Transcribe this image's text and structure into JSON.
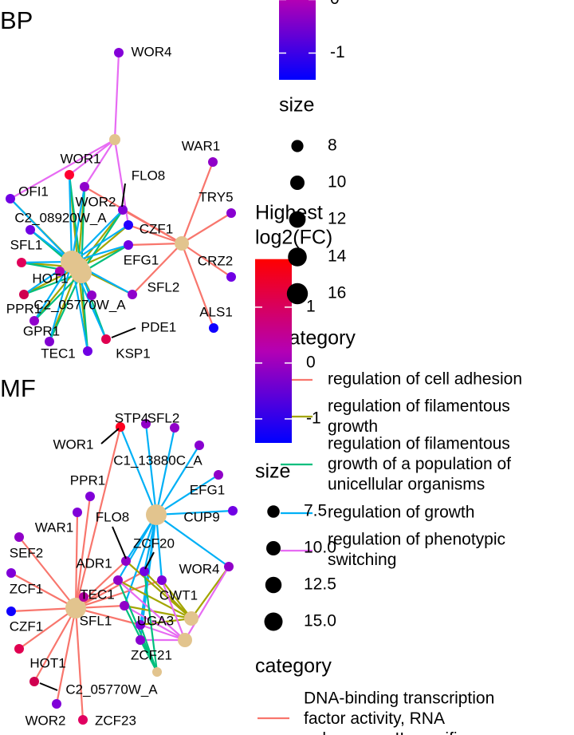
{
  "panels": [
    {
      "title": "BP",
      "genes": [
        {
          "label": "WOR4",
          "color": "#8400d8"
        },
        {
          "label": "WOR1",
          "color": "#ff0030"
        },
        {
          "label": "OFI1",
          "color": "#7000e4"
        },
        {
          "label": "WOR2",
          "color": "#9000cc"
        },
        {
          "label": "FLO8",
          "color": "#8000d8"
        },
        {
          "label": "C2_08920W_A",
          "color": "#7000e4"
        },
        {
          "label": "CZF1",
          "color": "#2000ff"
        },
        {
          "label": "EFG1",
          "color": "#7000e4"
        },
        {
          "label": "SFL1",
          "color": "#e0005a"
        },
        {
          "label": "HOT1",
          "color": "#b000b0"
        },
        {
          "label": "SFL2",
          "color": "#9000cc"
        },
        {
          "label": "C2_05770W_A",
          "color": "#9000c8"
        },
        {
          "label": "PPR1",
          "color": "#d00050"
        },
        {
          "label": "GPR1",
          "color": "#9000cc"
        },
        {
          "label": "TEC1",
          "color": "#8000d0"
        },
        {
          "label": "PDE1",
          "color": "#e00050"
        },
        {
          "label": "KSP1",
          "color": "#7000e4"
        },
        {
          "label": "WAR1",
          "color": "#9000c8"
        },
        {
          "label": "TRY5",
          "color": "#8800d0"
        },
        {
          "label": "CRZ2",
          "color": "#7000e4"
        },
        {
          "label": "ALS1",
          "color": "#1000ff"
        }
      ],
      "categories": [
        {
          "name": [
            "regulation of cell adhesion"
          ],
          "color": "#f8766d",
          "genes": [
            17,
            18,
            19,
            20,
            10,
            6,
            4,
            7,
            3
          ]
        },
        {
          "name": [
            "regulation of filamentous",
            "growth"
          ],
          "color": "#a3a500",
          "genes": [
            1,
            2,
            3,
            5,
            8,
            11,
            12,
            13,
            14,
            16,
            4,
            6,
            7,
            10
          ]
        },
        {
          "name": [
            "regulation of filamentous",
            "growth of a population of",
            "unicellular organisms"
          ],
          "color": "#00bf7d",
          "genes": [
            1,
            3,
            5,
            8,
            12,
            13,
            14,
            15,
            16,
            4,
            7
          ]
        },
        {
          "name": [
            "regulation of growth"
          ],
          "color": "#00b0f6",
          "genes": [
            1,
            2,
            3,
            5,
            8,
            9,
            11,
            12,
            13,
            14,
            15,
            16,
            4,
            6,
            7,
            10
          ]
        },
        {
          "name": [
            "regulation of phenotypic",
            "switching"
          ],
          "color": "#e76bf3",
          "genes": [
            0,
            1,
            3,
            6,
            2
          ]
        }
      ],
      "legend": {
        "color_lim": [
          -1.5,
          1.5
        ],
        "color_ticks": [
          0,
          -1
        ],
        "size_title": "size",
        "size_ticks": [
          8,
          10,
          12,
          14,
          16
        ],
        "category_title": "category"
      }
    },
    {
      "title": "MF",
      "genes": [
        {
          "label": "WOR1",
          "color": "#ff0020"
        },
        {
          "label": "STP4",
          "color": "#9000c8"
        },
        {
          "label": "SFL2",
          "color": "#9000c8"
        },
        {
          "label": "C1_13880C_A",
          "color": "#8800d0"
        },
        {
          "label": "PPR1",
          "color": "#8000d8"
        },
        {
          "label": "EFG1",
          "color": "#9000c8"
        },
        {
          "label": "CUP9",
          "color": "#7000e4"
        },
        {
          "label": "WAR1",
          "color": "#8000d8"
        },
        {
          "label": "FLO8",
          "color": "#9000c8"
        },
        {
          "label": "SEF2",
          "color": "#9000c8"
        },
        {
          "label": "ZCF20",
          "color": "#7000e4"
        },
        {
          "label": "ADR1",
          "color": "#9000c8"
        },
        {
          "label": "WOR4",
          "color": "#9000c8"
        },
        {
          "label": "ZCF1",
          "color": "#8000d8"
        },
        {
          "label": "TEC1",
          "color": "#b000a0"
        },
        {
          "label": "CWT1",
          "color": "#8000d8"
        },
        {
          "label": "CZF1",
          "color": "#1000ff"
        },
        {
          "label": "SFL1",
          "color": "#9000c8"
        },
        {
          "label": "UGA3",
          "color": "#8000d8"
        },
        {
          "label": "ZCF21",
          "color": "#8800d0"
        },
        {
          "label": "HOT1",
          "color": "#e00050"
        },
        {
          "label": "C2_05770W_A",
          "color": "#d00050"
        },
        {
          "label": "WOR2",
          "color": "#8000d8"
        },
        {
          "label": "ZCF23",
          "color": "#e00060"
        }
      ],
      "categories": [
        {
          "name": [
            "DNA-binding transcription",
            "factor activity, RNA",
            "polymerase II-specific"
          ],
          "color": "#f8766d",
          "genes": [
            0,
            4,
            7,
            9,
            13,
            16,
            20,
            21,
            22,
            23,
            8,
            11,
            10,
            17,
            18,
            15,
            14
          ]
        },
        {
          "color": "#00b0f6",
          "genes": [
            0,
            1,
            2,
            3,
            5,
            6,
            8,
            10,
            11,
            15,
            17,
            18,
            19,
            12
          ]
        },
        {
          "color": "#a3a500",
          "genes": [
            12,
            15,
            10,
            11,
            18,
            17,
            8
          ]
        },
        {
          "color": "#e76bf3",
          "genes": [
            12,
            15,
            18,
            19,
            17,
            11
          ]
        },
        {
          "color": "#00bf7d",
          "genes": [
            19,
            11,
            10,
            17,
            18
          ]
        }
      ],
      "legend": {
        "color_title": [
          "Highest",
          "log2(FC)"
        ],
        "color_lim": [
          -1.43,
          1.86
        ],
        "color_ticks": [
          1,
          0,
          -1
        ],
        "size_title": "size",
        "size_ticks": [
          7.5,
          {
            "value": 10,
            "label": "10.0"
          },
          12.5,
          {
            "value": 15,
            "label": "15.0"
          }
        ],
        "category_title": "category"
      }
    }
  ]
}
